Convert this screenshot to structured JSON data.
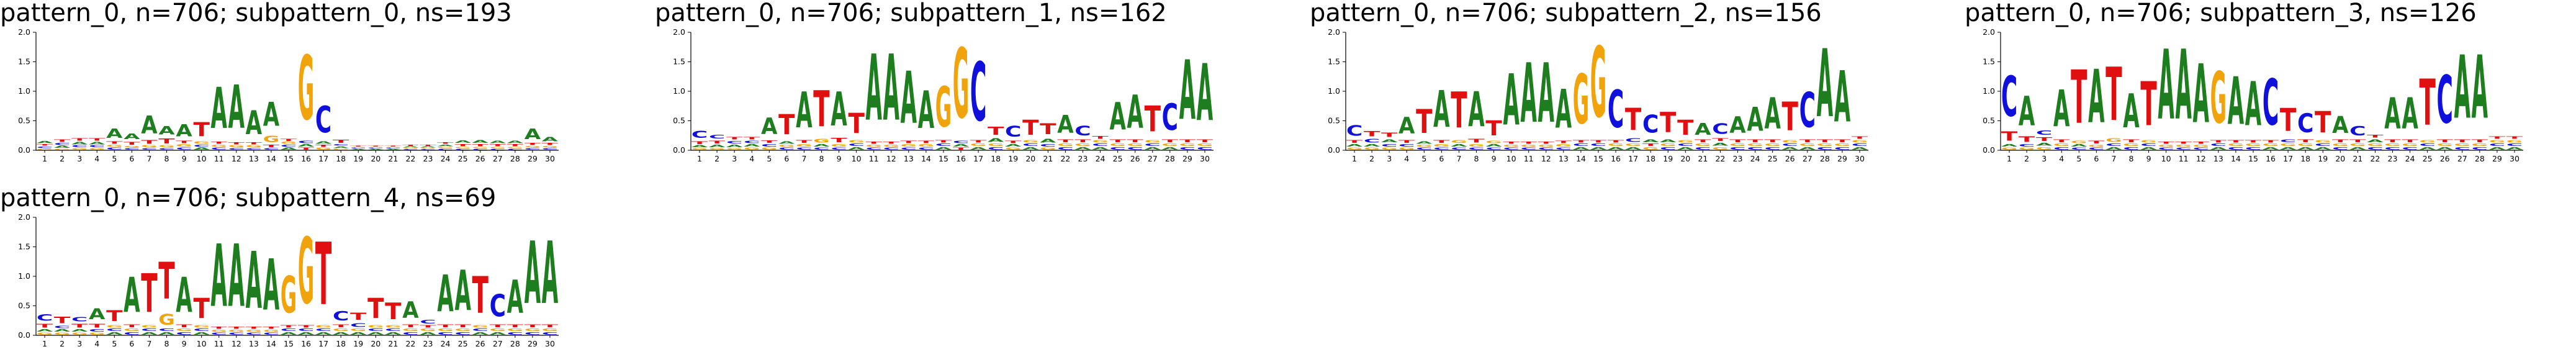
{
  "colors": {
    "A": "#1e7d1e",
    "C": "#1010dd",
    "G": "#f0a30a",
    "T": "#e01010"
  },
  "letter_order": [
    "A",
    "C",
    "G",
    "T"
  ],
  "y_ticks": [
    "0.0",
    "0.5",
    "1.0",
    "1.5",
    "2.0"
  ],
  "chart_data": [
    {
      "type": "sequence-logo",
      "title": "pattern_0, n=706; subpattern_0, ns=193",
      "ylim": [
        0,
        2
      ],
      "positions": [
        "1",
        "2",
        "3",
        "4",
        "5",
        "6",
        "7",
        "8",
        "9",
        "10",
        "11",
        "12",
        "13",
        "14",
        "15",
        "16",
        "17",
        "18",
        "19",
        "20",
        "21",
        "22",
        "23",
        "24",
        "25",
        "26",
        "27",
        "28",
        "29",
        "30"
      ],
      "heights": [
        {
          "A": 0.05,
          "C": 0.04,
          "G": 0.03,
          "T": 0.04
        },
        {
          "A": 0.05,
          "C": 0.05,
          "G": 0.03,
          "T": 0.06
        },
        {
          "A": 0.06,
          "C": 0.05,
          "G": 0.04,
          "T": 0.07
        },
        {
          "A": 0.06,
          "C": 0.05,
          "G": 0.04,
          "T": 0.07
        },
        {
          "A": 0.25,
          "C": 0.05,
          "G": 0.05,
          "T": 0.06
        },
        {
          "A": 0.15,
          "C": 0.04,
          "G": 0.04,
          "T": 0.08
        },
        {
          "A": 0.48,
          "C": 0.04,
          "G": 0.05,
          "T": 0.1
        },
        {
          "A": 0.23,
          "C": 0.04,
          "G": 0.05,
          "T": 0.13
        },
        {
          "A": 0.33,
          "C": 0.05,
          "G": 0.06,
          "T": 0.06
        },
        {
          "A": 0.05,
          "C": 0.05,
          "G": 0.06,
          "T": 0.38
        },
        {
          "A": 1.12,
          "C": 0.05,
          "G": 0.05,
          "T": 0.05
        },
        {
          "A": 1.18,
          "C": 0.04,
          "G": 0.05,
          "T": 0.05
        },
        {
          "A": 0.65,
          "C": 0.04,
          "G": 0.05,
          "T": 0.05
        },
        {
          "A": 0.65,
          "C": 0.04,
          "G": 0.18,
          "T": 0.06
        },
        {
          "A": 0.05,
          "C": 0.05,
          "G": 0.05,
          "T": 0.05
        },
        {
          "A": 0.06,
          "C": 0.06,
          "G": 1.75,
          "T": 0.05
        },
        {
          "A": 0.06,
          "C": 0.72,
          "G": 0.05,
          "T": 0.05
        },
        {
          "A": 0.04,
          "C": 0.04,
          "G": 0.03,
          "T": 0.09
        },
        {
          "A": 0.02,
          "C": 0.02,
          "G": 0.02,
          "T": 0.02
        },
        {
          "A": 0.02,
          "C": 0.02,
          "G": 0.02,
          "T": 0.02
        },
        {
          "A": 0.02,
          "C": 0.02,
          "G": 0.02,
          "T": 0.02
        },
        {
          "A": 0.03,
          "C": 0.02,
          "G": 0.02,
          "T": 0.03
        },
        {
          "A": 0.03,
          "C": 0.02,
          "G": 0.02,
          "T": 0.03
        },
        {
          "A": 0.04,
          "C": 0.03,
          "G": 0.03,
          "T": 0.04
        },
        {
          "A": 0.07,
          "C": 0.03,
          "G": 0.03,
          "T": 0.05
        },
        {
          "A": 0.08,
          "C": 0.03,
          "G": 0.03,
          "T": 0.05
        },
        {
          "A": 0.06,
          "C": 0.03,
          "G": 0.03,
          "T": 0.05
        },
        {
          "A": 0.06,
          "C": 0.03,
          "G": 0.03,
          "T": 0.05
        },
        {
          "A": 0.28,
          "C": 0.04,
          "G": 0.04,
          "T": 0.05
        },
        {
          "A": 0.12,
          "C": 0.04,
          "G": 0.04,
          "T": 0.05
        }
      ]
    },
    {
      "type": "sequence-logo",
      "title": "pattern_0, n=706; subpattern_1, ns=162",
      "ylim": [
        0,
        2
      ],
      "positions": [
        "1",
        "2",
        "3",
        "4",
        "5",
        "6",
        "7",
        "8",
        "9",
        "10",
        "11",
        "12",
        "13",
        "14",
        "15",
        "16",
        "17",
        "18",
        "19",
        "20",
        "21",
        "22",
        "23",
        "24",
        "25",
        "26",
        "27",
        "28",
        "29",
        "30"
      ],
      "heights": [
        {
          "A": 0.05,
          "C": 0.2,
          "G": 0.04,
          "T": 0.08
        },
        {
          "A": 0.06,
          "C": 0.1,
          "G": 0.04,
          "T": 0.08
        },
        {
          "A": 0.06,
          "C": 0.07,
          "G": 0.04,
          "T": 0.07
        },
        {
          "A": 0.06,
          "C": 0.06,
          "G": 0.05,
          "T": 0.06
        },
        {
          "A": 0.45,
          "C": 0.06,
          "G": 0.05,
          "T": 0.07
        },
        {
          "A": 0.06,
          "C": 0.05,
          "G": 0.05,
          "T": 0.55
        },
        {
          "A": 0.98,
          "C": 0.05,
          "G": 0.06,
          "T": 0.08
        },
        {
          "A": 0.06,
          "C": 0.05,
          "G": 0.1,
          "T": 0.98
        },
        {
          "A": 0.92,
          "C": 0.05,
          "G": 0.06,
          "T": 0.12
        },
        {
          "A": 0.06,
          "C": 0.06,
          "G": 0.06,
          "T": 0.55
        },
        {
          "A": 1.8,
          "C": 0.05,
          "G": 0.05,
          "T": 0.05
        },
        {
          "A": 1.8,
          "C": 0.05,
          "G": 0.05,
          "T": 0.05
        },
        {
          "A": 1.42,
          "C": 0.05,
          "G": 0.06,
          "T": 0.06
        },
        {
          "A": 1.02,
          "C": 0.05,
          "G": 0.06,
          "T": 0.06
        },
        {
          "A": 0.06,
          "C": 0.06,
          "G": 1.1,
          "T": 0.06
        },
        {
          "A": 0.06,
          "C": 0.06,
          "G": 1.9,
          "T": 0.05
        },
        {
          "A": 0.06,
          "C": 1.6,
          "G": 0.06,
          "T": 0.06
        },
        {
          "A": 0.1,
          "C": 0.06,
          "G": 0.06,
          "T": 0.22
        },
        {
          "A": 0.06,
          "C": 0.3,
          "G": 0.05,
          "T": 0.06
        },
        {
          "A": 0.06,
          "C": 0.06,
          "G": 0.06,
          "T": 0.4
        },
        {
          "A": 0.1,
          "C": 0.06,
          "G": 0.05,
          "T": 0.3
        },
        {
          "A": 0.48,
          "C": 0.06,
          "G": 0.06,
          "T": 0.08
        },
        {
          "A": 0.06,
          "C": 0.26,
          "G": 0.06,
          "T": 0.08
        },
        {
          "A": 0.06,
          "C": 0.06,
          "G": 0.06,
          "T": 0.08
        },
        {
          "A": 0.75,
          "C": 0.06,
          "G": 0.06,
          "T": 0.08
        },
        {
          "A": 0.9,
          "C": 0.06,
          "G": 0.06,
          "T": 0.08
        },
        {
          "A": 0.06,
          "C": 0.06,
          "G": 0.06,
          "T": 0.7
        },
        {
          "A": 0.06,
          "C": 0.72,
          "G": 0.06,
          "T": 0.08
        },
        {
          "A": 1.62,
          "C": 0.06,
          "G": 0.06,
          "T": 0.08
        },
        {
          "A": 1.55,
          "C": 0.06,
          "G": 0.06,
          "T": 0.08
        }
      ]
    },
    {
      "type": "sequence-logo",
      "title": "pattern_0, n=706; subpattern_2, ns=156",
      "ylim": [
        0,
        2
      ],
      "positions": [
        "1",
        "2",
        "3",
        "4",
        "5",
        "6",
        "7",
        "8",
        "9",
        "10",
        "11",
        "12",
        "13",
        "14",
        "15",
        "16",
        "17",
        "18",
        "19",
        "20",
        "21",
        "22",
        "23",
        "24",
        "25",
        "26",
        "27",
        "28",
        "29",
        "30"
      ],
      "heights": [
        {
          "A": 0.06,
          "C": 0.28,
          "G": 0.05,
          "T": 0.08
        },
        {
          "A": 0.06,
          "C": 0.1,
          "G": 0.05,
          "T": 0.14
        },
        {
          "A": 0.08,
          "C": 0.07,
          "G": 0.05,
          "T": 0.12
        },
        {
          "A": 0.45,
          "C": 0.06,
          "G": 0.05,
          "T": 0.08
        },
        {
          "A": 0.06,
          "C": 0.05,
          "G": 0.05,
          "T": 0.65
        },
        {
          "A": 1.0,
          "C": 0.05,
          "G": 0.06,
          "T": 0.08
        },
        {
          "A": 0.06,
          "C": 0.05,
          "G": 0.08,
          "T": 0.98
        },
        {
          "A": 0.95,
          "C": 0.05,
          "G": 0.06,
          "T": 0.1
        },
        {
          "A": 0.06,
          "C": 0.05,
          "G": 0.06,
          "T": 0.4
        },
        {
          "A": 1.4,
          "C": 0.05,
          "G": 0.05,
          "T": 0.05
        },
        {
          "A": 1.62,
          "C": 0.05,
          "G": 0.05,
          "T": 0.05
        },
        {
          "A": 1.62,
          "C": 0.05,
          "G": 0.05,
          "T": 0.05
        },
        {
          "A": 1.05,
          "C": 0.05,
          "G": 0.06,
          "T": 0.06
        },
        {
          "A": 0.06,
          "C": 0.06,
          "G": 1.35,
          "T": 0.06
        },
        {
          "A": 0.06,
          "C": 0.06,
          "G": 1.92,
          "T": 0.06
        },
        {
          "A": 0.06,
          "C": 1.02,
          "G": 0.06,
          "T": 0.06
        },
        {
          "A": 0.06,
          "C": 0.1,
          "G": 0.06,
          "T": 0.6
        },
        {
          "A": 0.08,
          "C": 0.48,
          "G": 0.06,
          "T": 0.06
        },
        {
          "A": 0.08,
          "C": 0.06,
          "G": 0.06,
          "T": 0.55
        },
        {
          "A": 0.06,
          "C": 0.06,
          "G": 0.06,
          "T": 0.4
        },
        {
          "A": 0.32,
          "C": 0.06,
          "G": 0.06,
          "T": 0.08
        },
        {
          "A": 0.08,
          "C": 0.28,
          "G": 0.06,
          "T": 0.08
        },
        {
          "A": 0.45,
          "C": 0.06,
          "G": 0.06,
          "T": 0.08
        },
        {
          "A": 0.65,
          "C": 0.06,
          "G": 0.06,
          "T": 0.08
        },
        {
          "A": 0.85,
          "C": 0.06,
          "G": 0.06,
          "T": 0.08
        },
        {
          "A": 0.06,
          "C": 0.06,
          "G": 0.06,
          "T": 0.78
        },
        {
          "A": 0.06,
          "C": 0.95,
          "G": 0.06,
          "T": 0.08
        },
        {
          "A": 1.85,
          "C": 0.06,
          "G": 0.06,
          "T": 0.08
        },
        {
          "A": 1.4,
          "C": 0.06,
          "G": 0.06,
          "T": 0.08
        },
        {
          "A": 0.06,
          "C": 0.06,
          "G": 0.06,
          "T": 0.06
        }
      ]
    },
    {
      "type": "sequence-logo",
      "title": "pattern_0, n=706; subpattern_3, ns=126",
      "ylim": [
        0,
        2
      ],
      "positions": [
        "1",
        "2",
        "3",
        "4",
        "5",
        "6",
        "7",
        "8",
        "9",
        "10",
        "11",
        "12",
        "13",
        "14",
        "15",
        "16",
        "17",
        "18",
        "19",
        "20",
        "21",
        "22",
        "23",
        "24",
        "25",
        "26",
        "27",
        "28",
        "29",
        "30"
      ],
      "heights": [
        {
          "A": 0.06,
          "C": 1.1,
          "G": 0.05,
          "T": 0.25
        },
        {
          "A": 0.8,
          "C": 0.06,
          "G": 0.05,
          "T": 0.15
        },
        {
          "A": 0.08,
          "C": 0.12,
          "G": 0.06,
          "T": 0.1
        },
        {
          "A": 1.0,
          "C": 0.06,
          "G": 0.06,
          "T": 0.08
        },
        {
          "A": 0.06,
          "C": 0.05,
          "G": 0.06,
          "T": 1.45
        },
        {
          "A": 1.45,
          "C": 0.05,
          "G": 0.05,
          "T": 0.08
        },
        {
          "A": 0.06,
          "C": 0.06,
          "G": 0.1,
          "T": 1.45
        },
        {
          "A": 0.92,
          "C": 0.06,
          "G": 0.06,
          "T": 0.08
        },
        {
          "A": 0.06,
          "C": 0.06,
          "G": 0.06,
          "T": 1.2
        },
        {
          "A": 1.9,
          "C": 0.05,
          "G": 0.05,
          "T": 0.05
        },
        {
          "A": 1.9,
          "C": 0.05,
          "G": 0.05,
          "T": 0.05
        },
        {
          "A": 1.6,
          "C": 0.05,
          "G": 0.05,
          "T": 0.05
        },
        {
          "A": 0.06,
          "C": 0.06,
          "G": 1.4,
          "T": 0.06
        },
        {
          "A": 1.3,
          "C": 0.06,
          "G": 0.06,
          "T": 0.06
        },
        {
          "A": 1.2,
          "C": 0.06,
          "G": 0.06,
          "T": 0.06
        },
        {
          "A": 0.06,
          "C": 1.25,
          "G": 0.06,
          "T": 0.06
        },
        {
          "A": 0.06,
          "C": 0.08,
          "G": 0.06,
          "T": 0.62
        },
        {
          "A": 0.06,
          "C": 0.52,
          "G": 0.06,
          "T": 0.08
        },
        {
          "A": 0.06,
          "C": 0.06,
          "G": 0.06,
          "T": 0.58
        },
        {
          "A": 0.46,
          "C": 0.06,
          "G": 0.06,
          "T": 0.08
        },
        {
          "A": 0.06,
          "C": 0.25,
          "G": 0.06,
          "T": 0.08
        },
        {
          "A": 0.08,
          "C": 0.06,
          "G": 0.06,
          "T": 0.08
        },
        {
          "A": 0.85,
          "C": 0.06,
          "G": 0.06,
          "T": 0.08
        },
        {
          "A": 0.85,
          "C": 0.06,
          "G": 0.06,
          "T": 0.08
        },
        {
          "A": 0.06,
          "C": 0.06,
          "G": 0.06,
          "T": 1.25
        },
        {
          "A": 0.06,
          "C": 1.3,
          "G": 0.06,
          "T": 0.08
        },
        {
          "A": 1.72,
          "C": 0.06,
          "G": 0.06,
          "T": 0.08
        },
        {
          "A": 1.72,
          "C": 0.06,
          "G": 0.06,
          "T": 0.08
        },
        {
          "A": 0.06,
          "C": 0.06,
          "G": 0.06,
          "T": 0.06
        },
        {
          "A": 0.06,
          "C": 0.06,
          "G": 0.06,
          "T": 0.06
        }
      ]
    },
    {
      "type": "sequence-logo",
      "title": "pattern_0, n=706; subpattern_4, ns=69",
      "ylim": [
        0,
        2
      ],
      "positions": [
        "1",
        "2",
        "3",
        "4",
        "5",
        "6",
        "7",
        "8",
        "9",
        "10",
        "11",
        "12",
        "13",
        "14",
        "15",
        "16",
        "17",
        "18",
        "19",
        "20",
        "21",
        "22",
        "23",
        "24",
        "25",
        "26",
        "27",
        "28",
        "29",
        "30"
      ],
      "heights": [
        {
          "A": 0.06,
          "C": 0.18,
          "G": 0.05,
          "T": 0.1
        },
        {
          "A": 0.06,
          "C": 0.06,
          "G": 0.05,
          "T": 0.18
        },
        {
          "A": 0.06,
          "C": 0.12,
          "G": 0.05,
          "T": 0.1
        },
        {
          "A": 0.3,
          "C": 0.06,
          "G": 0.05,
          "T": 0.1
        },
        {
          "A": 0.06,
          "C": 0.06,
          "G": 0.06,
          "T": 0.3
        },
        {
          "A": 0.95,
          "C": 0.06,
          "G": 0.06,
          "T": 0.08
        },
        {
          "A": 0.06,
          "C": 0.06,
          "G": 0.06,
          "T": 1.05
        },
        {
          "A": 0.06,
          "C": 0.06,
          "G": 0.3,
          "T": 1.0
        },
        {
          "A": 0.95,
          "C": 0.06,
          "G": 0.06,
          "T": 0.08
        },
        {
          "A": 0.06,
          "C": 0.06,
          "G": 0.06,
          "T": 0.55
        },
        {
          "A": 1.7,
          "C": 0.05,
          "G": 0.05,
          "T": 0.05
        },
        {
          "A": 1.7,
          "C": 0.05,
          "G": 0.05,
          "T": 0.05
        },
        {
          "A": 1.55,
          "C": 0.05,
          "G": 0.05,
          "T": 0.05
        },
        {
          "A": 1.4,
          "C": 0.05,
          "G": 0.05,
          "T": 0.05
        },
        {
          "A": 0.06,
          "C": 0.06,
          "G": 1.0,
          "T": 0.06
        },
        {
          "A": 0.06,
          "C": 0.06,
          "G": 1.8,
          "T": 0.06
        },
        {
          "A": 0.06,
          "C": 0.06,
          "G": 0.06,
          "T": 1.7
        },
        {
          "A": 0.06,
          "C": 0.25,
          "G": 0.06,
          "T": 0.08
        },
        {
          "A": 0.06,
          "C": 0.1,
          "G": 0.06,
          "T": 0.2
        },
        {
          "A": 0.06,
          "C": 0.06,
          "G": 0.06,
          "T": 0.55
        },
        {
          "A": 0.06,
          "C": 0.06,
          "G": 0.06,
          "T": 0.45
        },
        {
          "A": 0.45,
          "C": 0.06,
          "G": 0.06,
          "T": 0.08
        },
        {
          "A": 0.06,
          "C": 0.1,
          "G": 0.06,
          "T": 0.06
        },
        {
          "A": 1.0,
          "C": 0.06,
          "G": 0.06,
          "T": 0.08
        },
        {
          "A": 1.1,
          "C": 0.06,
          "G": 0.06,
          "T": 0.08
        },
        {
          "A": 0.06,
          "C": 0.06,
          "G": 0.06,
          "T": 1.0
        },
        {
          "A": 0.06,
          "C": 0.6,
          "G": 0.06,
          "T": 0.08
        },
        {
          "A": 0.9,
          "C": 0.06,
          "G": 0.06,
          "T": 0.08
        },
        {
          "A": 1.7,
          "C": 0.06,
          "G": 0.06,
          "T": 0.08
        },
        {
          "A": 1.7,
          "C": 0.06,
          "G": 0.06,
          "T": 0.08
        }
      ]
    }
  ]
}
